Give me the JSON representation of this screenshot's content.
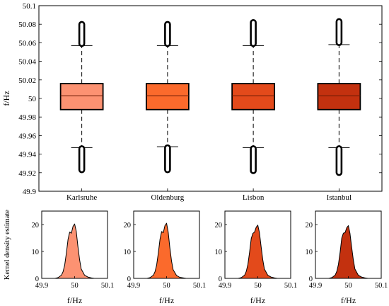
{
  "chart_data": [
    {
      "type": "box",
      "ylabel": "f/Hz",
      "ylim": [
        49.9,
        50.1
      ],
      "yticks": [
        49.9,
        49.92,
        49.94,
        49.96,
        49.98,
        50,
        50.02,
        50.04,
        50.06,
        50.08,
        50.1
      ],
      "categories": [
        "Karlsruhe",
        "Oldenburg",
        "Lisbon",
        "Istanbul"
      ],
      "colors": [
        "#fc9272",
        "#fb6a2c",
        "#e34a1b",
        "#c3310f"
      ],
      "boxes": [
        {
          "name": "Karlsruhe",
          "whisker_low": 49.947,
          "q1": 49.988,
          "median": 50.003,
          "q3": 50.016,
          "whisker_high": 50.057,
          "outlier_low": [
            49.922,
            49.947
          ],
          "outlier_high": [
            50.058,
            50.081
          ]
        },
        {
          "name": "Oldenburg",
          "whisker_low": 49.948,
          "q1": 49.988,
          "median": 50.003,
          "q3": 50.016,
          "whisker_high": 50.057,
          "outlier_low": [
            49.922,
            49.948
          ],
          "outlier_high": [
            50.058,
            50.081
          ]
        },
        {
          "name": "Lisbon",
          "whisker_low": 49.947,
          "q1": 49.988,
          "median": 50.003,
          "q3": 50.016,
          "whisker_high": 50.057,
          "outlier_low": [
            49.921,
            49.947
          ],
          "outlier_high": [
            50.058,
            50.083
          ]
        },
        {
          "name": "Istanbul",
          "whisker_low": 49.947,
          "q1": 49.988,
          "median": 50.003,
          "q3": 50.016,
          "whisker_high": 50.058,
          "outlier_low": [
            49.919,
            49.947
          ],
          "outlier_high": [
            50.059,
            50.084
          ]
        }
      ]
    },
    {
      "type": "area",
      "ylabel": "Kernel density estimate",
      "xlabel": "f/Hz",
      "xlim": [
        49.9,
        50.1
      ],
      "ylim": [
        0,
        25
      ],
      "xticks": [
        49.9,
        50,
        50.1
      ],
      "yticks": [
        0,
        10,
        20
      ],
      "xtick_labels": [
        "49.9",
        "50",
        "50.1"
      ],
      "ytick_labels": [
        "0",
        "10",
        "20"
      ],
      "x": [
        49.94,
        49.95,
        49.96,
        49.965,
        49.97,
        49.975,
        49.98,
        49.985,
        49.99,
        49.995,
        50.0,
        50.005,
        50.01,
        50.015,
        50.02,
        50.03,
        50.04,
        50.05,
        50.06
      ],
      "series": [
        {
          "values": [
            0,
            0.3,
            1.2,
            2.5,
            5,
            9.5,
            14.5,
            17.2,
            16.8,
            19.3,
            20.2,
            17.5,
            12,
            7,
            3.5,
            1.2,
            0.5,
            0.2,
            0
          ]
        },
        {
          "values": [
            0,
            0.3,
            1.2,
            2.5,
            5,
            9.5,
            14.5,
            17.4,
            17.0,
            19.6,
            20.5,
            17.2,
            11.5,
            6.5,
            3.2,
            1.1,
            0.4,
            0.2,
            0
          ]
        },
        {
          "values": [
            0,
            0.3,
            1.2,
            2.6,
            5.2,
            9.8,
            14.8,
            16.7,
            17.2,
            19.0,
            19.8,
            17.0,
            12,
            7,
            3.5,
            1.2,
            0.5,
            0.2,
            0
          ]
        },
        {
          "values": [
            0,
            0.3,
            1.2,
            2.6,
            5.2,
            9.8,
            15.0,
            16.8,
            17.0,
            18.8,
            19.6,
            16.8,
            11.8,
            7,
            3.5,
            1.2,
            0.5,
            0.2,
            0
          ]
        }
      ]
    }
  ]
}
